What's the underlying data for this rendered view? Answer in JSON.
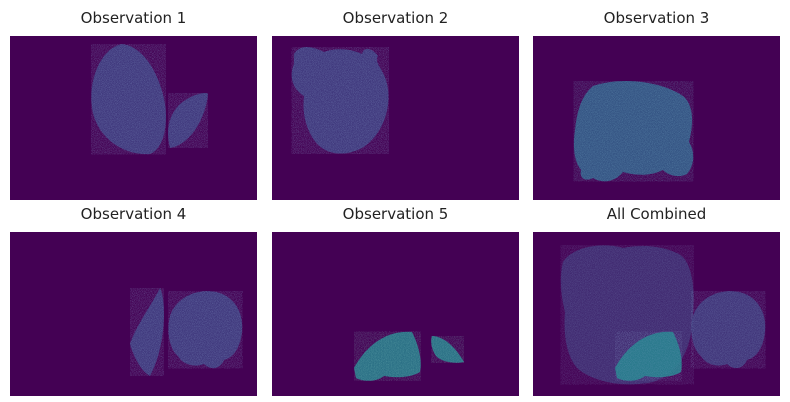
{
  "colors": {
    "background": "#440154",
    "speckle_low": "#3b528b",
    "speckle_mid": "#21918c",
    "speckle_high": "#5ec962"
  },
  "panels": [
    {
      "title": "Observation 1"
    },
    {
      "title": "Observation 2"
    },
    {
      "title": "Observation 3"
    },
    {
      "title": "Observation 4"
    },
    {
      "title": "Observation 5"
    },
    {
      "title": "All Combined"
    }
  ]
}
